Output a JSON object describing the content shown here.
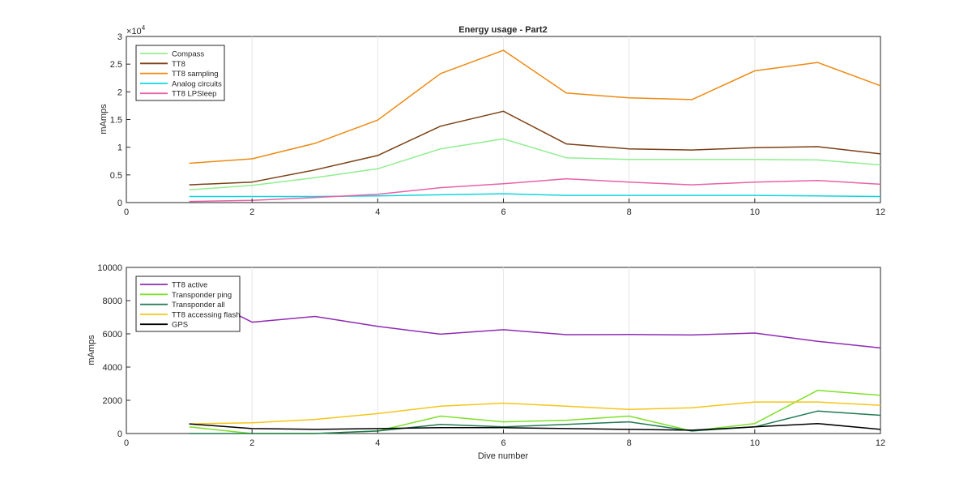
{
  "chart_data": [
    {
      "type": "line",
      "title": "Energy usage - Part2",
      "xlabel": "",
      "ylabel": "mAmps",
      "exponent_label": "10",
      "exponent_power": "4",
      "exponent_prefix": "×",
      "xlim": [
        0,
        12
      ],
      "ylim": [
        0,
        30000
      ],
      "xticks": [
        0,
        2,
        4,
        6,
        8,
        10,
        12
      ],
      "yticks": [
        0,
        5000,
        10000,
        15000,
        20000,
        25000,
        30000
      ],
      "ytick_labels": [
        "0",
        "0.5",
        "1",
        "1.5",
        "2",
        "2.5",
        "3"
      ],
      "legend_position": "top-left",
      "x": [
        1,
        2,
        3,
        4,
        5,
        6,
        7,
        8,
        9,
        10,
        11,
        12
      ],
      "series": [
        {
          "name": "Compass",
          "color": "#90ee90",
          "values": [
            2300,
            3100,
            4500,
            6100,
            9700,
            11500,
            8100,
            7800,
            7800,
            7800,
            7700,
            6800
          ]
        },
        {
          "name": "TT8",
          "color": "#7b3f14",
          "values": [
            3200,
            3700,
            5900,
            8500,
            13800,
            16500,
            10600,
            9700,
            9500,
            9900,
            10100,
            8800
          ]
        },
        {
          "name": "TT8 sampling",
          "color": "#ee8a12",
          "values": [
            7100,
            7900,
            10700,
            14900,
            23300,
            27500,
            19800,
            18900,
            18600,
            23800,
            25300,
            21100
          ]
        },
        {
          "name": "Analog circuits",
          "color": "#11d6e0",
          "values": [
            1100,
            1100,
            1100,
            1200,
            1400,
            1600,
            1300,
            1300,
            1300,
            1300,
            1200,
            1100
          ]
        },
        {
          "name": "TT8 LPSleep",
          "color": "#e862a7",
          "values": [
            200,
            400,
            900,
            1500,
            2700,
            3400,
            4300,
            3700,
            3200,
            3700,
            4000,
            3300
          ]
        }
      ]
    },
    {
      "type": "line",
      "title": "",
      "xlabel": "Dive number",
      "ylabel": "mAmps",
      "xlim": [
        0,
        12
      ],
      "ylim": [
        0,
        10000
      ],
      "xticks": [
        0,
        2,
        4,
        6,
        8,
        10,
        12
      ],
      "yticks": [
        0,
        2000,
        4000,
        6000,
        8000,
        10000
      ],
      "ytick_labels": [
        "0",
        "2000",
        "4000",
        "6000",
        "8000",
        "10000"
      ],
      "legend_position": "top-left",
      "x": [
        1,
        2,
        3,
        4,
        5,
        6,
        7,
        8,
        9,
        10,
        11,
        12
      ],
      "series": [
        {
          "name": "TT8 active",
          "color": "#8e2bb3",
          "values": [
            8600,
            6700,
            7050,
            6450,
            5980,
            6250,
            5950,
            5960,
            5930,
            6050,
            5550,
            5150
          ]
        },
        {
          "name": "Transponder ping",
          "color": "#7ee02a",
          "values": [
            400,
            0,
            0,
            150,
            1050,
            700,
            800,
            1050,
            150,
            600,
            2600,
            2300
          ]
        },
        {
          "name": "Transponder all",
          "color": "#217a55",
          "values": [
            0,
            0,
            0,
            150,
            550,
            400,
            550,
            700,
            150,
            400,
            1350,
            1100
          ]
        },
        {
          "name": "TT8 accessing flash",
          "color": "#f5c518",
          "values": [
            580,
            650,
            850,
            1200,
            1650,
            1830,
            1650,
            1450,
            1550,
            1900,
            1900,
            1700
          ]
        },
        {
          "name": "GPS",
          "color": "#000000",
          "values": [
            580,
            300,
            250,
            300,
            350,
            350,
            300,
            250,
            200,
            400,
            600,
            250
          ]
        }
      ]
    }
  ]
}
